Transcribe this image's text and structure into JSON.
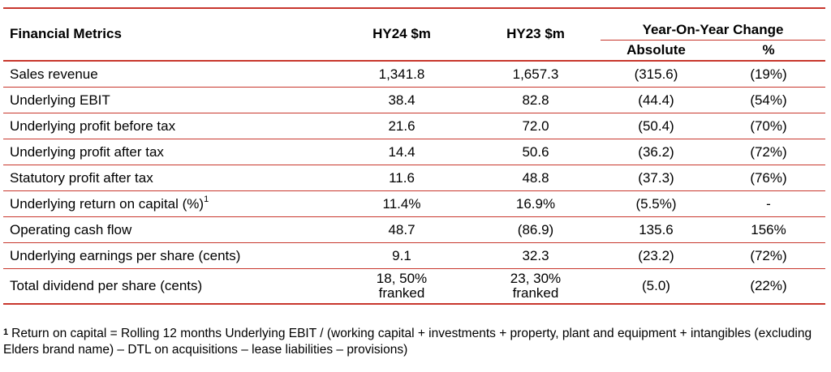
{
  "table": {
    "headers": {
      "metric": "Financial Metrics",
      "hy24": "HY24 $m",
      "hy23": "HY23 $m",
      "yoy": "Year-On-Year Change",
      "absolute": "Absolute",
      "percent": "%"
    },
    "rows": [
      {
        "metric": "Sales revenue",
        "hy24": "1,341.8",
        "hy23": "1,657.3",
        "absolute": "(315.6)",
        "percent": "(19%)"
      },
      {
        "metric": "Underlying EBIT",
        "hy24": "38.4",
        "hy23": "82.8",
        "absolute": "(44.4)",
        "percent": "(54%)"
      },
      {
        "metric": "Underlying profit before tax",
        "hy24": "21.6",
        "hy23": "72.0",
        "absolute": "(50.4)",
        "percent": "(70%)"
      },
      {
        "metric": "Underlying profit after tax",
        "hy24": "14.4",
        "hy23": "50.6",
        "absolute": "(36.2)",
        "percent": "(72%)"
      },
      {
        "metric": "Statutory profit after tax",
        "hy24": "11.6",
        "hy23": "48.8",
        "absolute": "(37.3)",
        "percent": "(76%)"
      },
      {
        "metric": "Underlying return on capital (%)",
        "metric_sup": "1",
        "hy24": "11.4%",
        "hy23": "16.9%",
        "absolute": "(5.5%)",
        "percent": "-"
      },
      {
        "metric": "Operating cash flow",
        "hy24": "48.7",
        "hy23": "(86.9)",
        "absolute": "135.6",
        "percent": "156%"
      },
      {
        "metric": "Underlying earnings per share (cents)",
        "hy24": "9.1",
        "hy23": "32.3",
        "absolute": "(23.2)",
        "percent": "(72%)"
      },
      {
        "metric": "Total dividend per share (cents)",
        "hy24_line1": "18, 50%",
        "hy24_line2": "franked",
        "hy23_line1": "23, 30%",
        "hy23_line2": "franked",
        "absolute": "(5.0)",
        "percent": "(22%)"
      }
    ]
  },
  "footnote": {
    "marker": "1",
    "text": "Return on capital = Rolling 12 months Underlying EBIT / (working capital + investments + property, plant and equipment + intangibles (excluding Elders brand name) – DTL on acquisitions – lease liabilities – provisions)"
  },
  "colors": {
    "rule": "#c8372d",
    "text": "#000000",
    "background": "#ffffff"
  }
}
